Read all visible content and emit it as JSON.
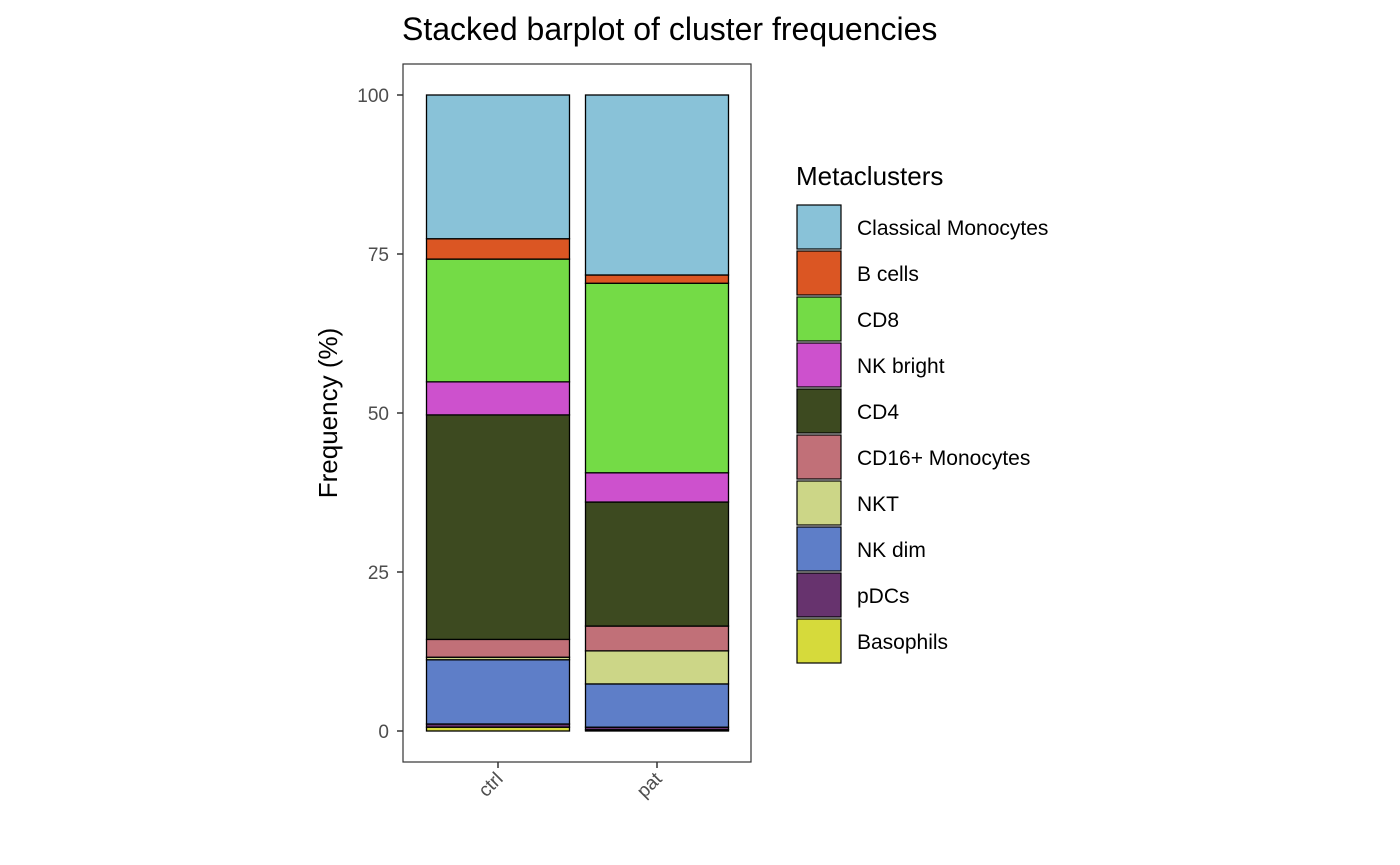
{
  "chart_data": {
    "type": "bar",
    "stacked": true,
    "title": "Stacked barplot of cluster frequencies",
    "xlabel": "",
    "ylabel": "Frequency (%)",
    "ylim": [
      0,
      100
    ],
    "yticks": [
      0,
      25,
      50,
      75,
      100
    ],
    "categories": [
      "ctrl",
      "pat"
    ],
    "legend": {
      "title": "Metaclusters",
      "position": "right"
    },
    "grid": false,
    "series": [
      {
        "name": "Basophils",
        "color": "#D6DA3B",
        "values": [
          0.6,
          0.2
        ]
      },
      {
        "name": "pDCs",
        "color": "#67336E",
        "values": [
          0.5,
          0.4
        ]
      },
      {
        "name": "NK dim",
        "color": "#5E7EC8",
        "values": [
          10.1,
          6.8
        ]
      },
      {
        "name": "NKT",
        "color": "#CCD687",
        "values": [
          0.4,
          5.2
        ]
      },
      {
        "name": "CD16+ Monocytes",
        "color": "#C17078",
        "values": [
          2.8,
          3.9
        ]
      },
      {
        "name": "CD4",
        "color": "#3D4A20",
        "values": [
          35.3,
          19.5
        ]
      },
      {
        "name": "NK bright",
        "color": "#CD51CD",
        "values": [
          5.2,
          4.6
        ]
      },
      {
        "name": "CD8",
        "color": "#74DB46",
        "values": [
          19.3,
          29.8
        ]
      },
      {
        "name": "B cells",
        "color": "#DB5623",
        "values": [
          3.2,
          1.3
        ]
      },
      {
        "name": "Classical Monocytes",
        "color": "#89C2D8",
        "values": [
          22.6,
          28.3
        ]
      }
    ]
  }
}
